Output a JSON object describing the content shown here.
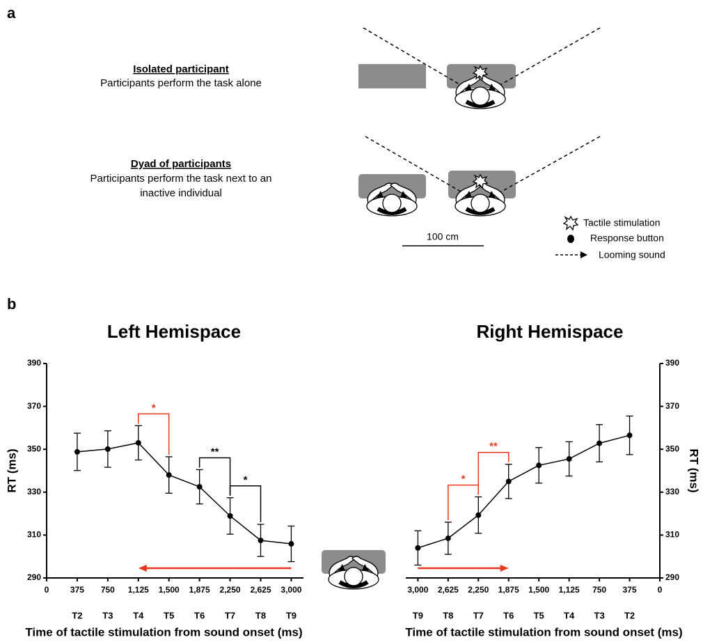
{
  "panel_a": {
    "label": "a",
    "conditions": [
      {
        "title": "Isolated participant",
        "lines": [
          "Participants perform the task alone"
        ]
      },
      {
        "title": "Dyad of participants",
        "lines": [
          "Participants perform the task next to an",
          "inactive individual"
        ]
      }
    ],
    "scale_label": "100 cm",
    "legend": [
      "Tactile stimulation",
      "Response button",
      "Looming sound"
    ]
  },
  "panel_b": {
    "label": "b"
  },
  "chart_data": [
    {
      "type": "line",
      "title": "Left Hemispace",
      "ylabel": "RT (ms)",
      "xlabel": "Time of tactile stimulation from sound onset (ms)",
      "y_axis_side": "left",
      "x": [
        375,
        750,
        1125,
        1500,
        1875,
        2250,
        2625,
        3000
      ],
      "categories": [
        "T2",
        "T3",
        "T4",
        "T5",
        "T6",
        "T7",
        "T8",
        "T9"
      ],
      "values": [
        348.8,
        350.1,
        353,
        338,
        332.5,
        318.9,
        307.5,
        305.9
      ],
      "errors": [
        8.7,
        8.5,
        8,
        8.5,
        8,
        8.5,
        7.5,
        8.3
      ],
      "color": "#000000",
      "xlim": [
        0,
        3150
      ],
      "ylim": [
        290,
        390
      ],
      "xticks": [
        0,
        375,
        750,
        {
          "value": 1125,
          "label": "1,125"
        },
        {
          "value": 1500,
          "label": "1,500"
        },
        {
          "value": 1875,
          "label": "1,875"
        },
        {
          "value": 2250,
          "label": "2,250"
        },
        {
          "value": 2625,
          "label": "2,625"
        },
        {
          "value": 3000,
          "label": "3,000"
        }
      ],
      "yticks": [
        290,
        310,
        330,
        350,
        370,
        390
      ],
      "significance": [
        {
          "between": [
            1125,
            1500
          ],
          "label": "*",
          "color": "#e8381c"
        },
        {
          "between": [
            1875,
            2250
          ],
          "label": "**",
          "color": "#000000"
        },
        {
          "between": [
            2250,
            2625
          ],
          "label": "*",
          "color": "#000000"
        }
      ],
      "arrow": {
        "from": 3000,
        "to": 1125,
        "color": "#e8381c"
      }
    },
    {
      "type": "line",
      "title": "Right Hemispace",
      "ylabel": "RT (ms)",
      "xlabel": "Time of tactile stimulation from sound onset (ms)",
      "y_axis_side": "right",
      "x": [
        3000,
        2625,
        2250,
        1875,
        1500,
        1125,
        750,
        375
      ],
      "categories": [
        "T9",
        "T8",
        "T7",
        "T6",
        "T5",
        "T4",
        "T3",
        "T2"
      ],
      "values": [
        304,
        308.5,
        319.3,
        335,
        342.5,
        345.5,
        352.8,
        356.5
      ],
      "errors": [
        8,
        7.5,
        8.5,
        8,
        8.3,
        8,
        8.7,
        9
      ],
      "color": "#000000",
      "xlim": [
        3150,
        0
      ],
      "ylim": [
        290,
        390
      ],
      "xticks": [
        {
          "value": 3000,
          "label": "3,000"
        },
        {
          "value": 2625,
          "label": "2,625"
        },
        {
          "value": 2250,
          "label": "2,250"
        },
        {
          "value": 1875,
          "label": "1,875"
        },
        {
          "value": 1500,
          "label": "1,500"
        },
        {
          "value": 1125,
          "label": "1,125"
        },
        750,
        375,
        0
      ],
      "yticks": [
        290,
        310,
        330,
        350,
        370,
        390
      ],
      "significance": [
        {
          "between": [
            2625,
            2250
          ],
          "label": "*",
          "color": "#e8381c"
        },
        {
          "between": [
            2250,
            1875
          ],
          "label": "**",
          "color": "#e8381c"
        }
      ],
      "arrow": {
        "from": 3000,
        "to": 1875,
        "color": "#e8381c"
      }
    }
  ]
}
